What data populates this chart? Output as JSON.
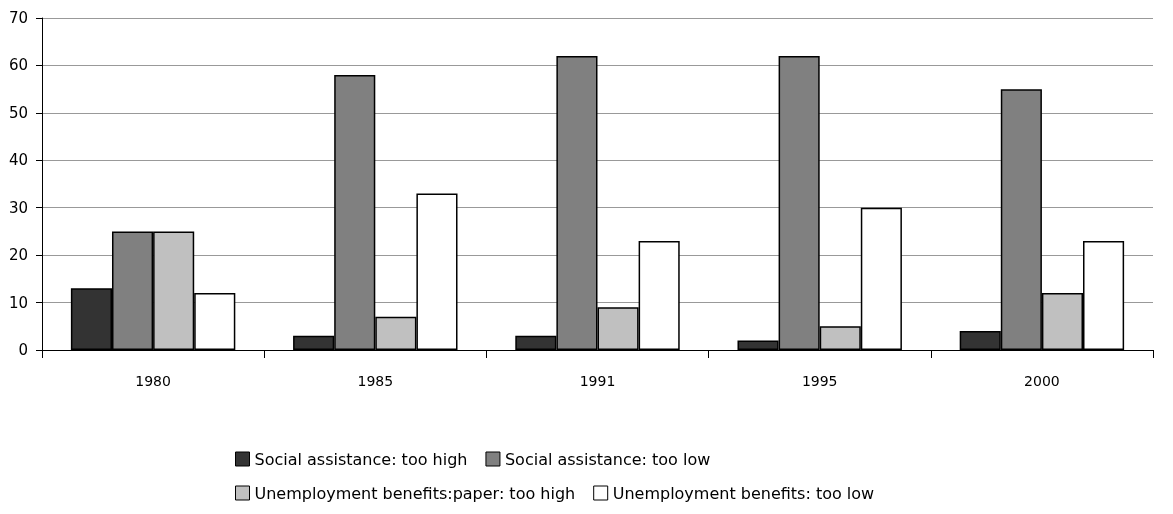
{
  "chart_data": {
    "type": "bar",
    "categories": [
      "1980",
      "1985",
      "1991",
      "1995",
      "2000"
    ],
    "series": [
      {
        "name": "Social assistance: too high",
        "color": "#333333",
        "values": [
          13,
          3,
          3,
          2,
          4
        ]
      },
      {
        "name": "Social assistance: too low",
        "color": "#808080",
        "values": [
          25,
          58,
          62,
          62,
          55
        ]
      },
      {
        "name": "Unemployment benefits:paper: too high",
        "color": "#c0c0c0",
        "values": [
          25,
          7,
          9,
          5,
          12
        ]
      },
      {
        "name": "Unemployment benefits: too low",
        "color": "#ffffff",
        "values": [
          12,
          33,
          23,
          30,
          23
        ]
      }
    ],
    "ylim": [
      0,
      70
    ],
    "yticks": [
      0,
      10,
      20,
      30,
      40,
      50,
      60,
      70
    ],
    "grid": "y",
    "legend": "bottom"
  }
}
